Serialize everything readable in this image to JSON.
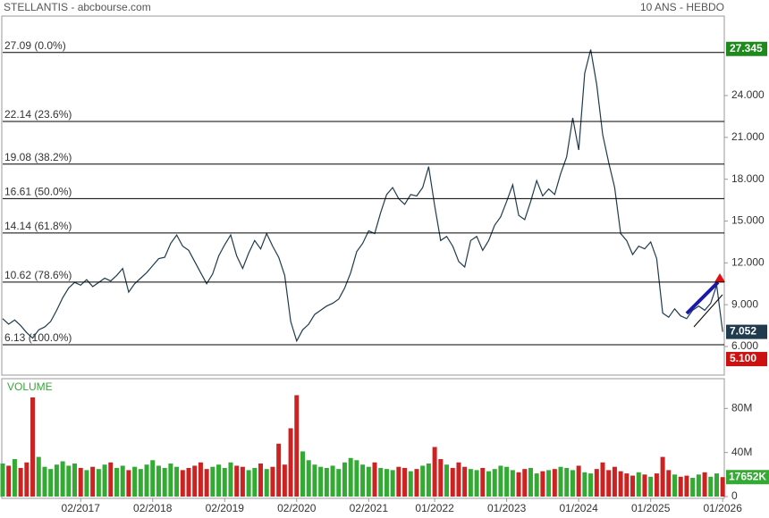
{
  "chart_data": {
    "type": "line",
    "title": "STELLANTIS - abcbourse.com",
    "subtitle": "10 ANS - HEBDO",
    "color": "#1f3b4d",
    "x": [
      "01/2016",
      "02/2016",
      "03/2016",
      "04/2016",
      "05/2016",
      "06/2016",
      "07/2016",
      "08/2016",
      "09/2016",
      "10/2016",
      "11/2016",
      "12/2016",
      "01/2017",
      "02/2017",
      "03/2017",
      "04/2017",
      "05/2017",
      "06/2017",
      "07/2017",
      "08/2017",
      "09/2017",
      "10/2017",
      "11/2017",
      "12/2017",
      "01/2018",
      "02/2018",
      "03/2018",
      "04/2018",
      "05/2018",
      "06/2018",
      "07/2018",
      "08/2018",
      "09/2018",
      "10/2018",
      "11/2018",
      "12/2018",
      "01/2019",
      "02/2019",
      "03/2019",
      "04/2019",
      "05/2019",
      "06/2019",
      "07/2019",
      "08/2019",
      "09/2019",
      "10/2019",
      "11/2019",
      "12/2019",
      "01/2020",
      "02/2020",
      "03/2020",
      "04/2020",
      "05/2020",
      "06/2020",
      "07/2020",
      "08/2020",
      "09/2020",
      "10/2020",
      "11/2020",
      "12/2020",
      "01/2021",
      "02/2021",
      "03/2021",
      "04/2021",
      "05/2021",
      "06/2021",
      "07/2021",
      "08/2021",
      "09/2021",
      "10/2021",
      "11/2021",
      "12/2021",
      "01/2022",
      "02/2022",
      "03/2022",
      "04/2022",
      "05/2022",
      "06/2022",
      "07/2022",
      "08/2022",
      "09/2022",
      "10/2022",
      "11/2022",
      "12/2022",
      "01/2023",
      "02/2023",
      "03/2023",
      "04/2023",
      "05/2023",
      "06/2023",
      "07/2023",
      "08/2023",
      "09/2023",
      "10/2023",
      "11/2023",
      "12/2023",
      "01/2024",
      "02/2024",
      "03/2024",
      "04/2024",
      "05/2024",
      "06/2024",
      "07/2024",
      "08/2024",
      "09/2024",
      "10/2024",
      "11/2024",
      "12/2024",
      "01/2025",
      "02/2025",
      "03/2025",
      "04/2025",
      "05/2025",
      "06/2025",
      "07/2025",
      "08/2025",
      "09/2025",
      "10/2025",
      "11/2025",
      "12/2025",
      "01/2026"
    ],
    "values": [
      8.0,
      7.6,
      7.9,
      7.5,
      7.0,
      6.6,
      7.2,
      7.4,
      7.8,
      8.6,
      9.5,
      10.2,
      10.6,
      10.4,
      10.8,
      10.3,
      10.6,
      10.9,
      10.7,
      11.1,
      11.6,
      9.9,
      10.5,
      10.9,
      11.3,
      11.8,
      12.3,
      12.4,
      13.4,
      14.0,
      13.2,
      12.9,
      12.1,
      11.3,
      10.5,
      11.2,
      12.5,
      13.3,
      14.0,
      12.5,
      11.6,
      12.7,
      13.6,
      13.0,
      14.1,
      13.2,
      12.4,
      11.1,
      7.8,
      6.4,
      7.2,
      7.6,
      8.3,
      8.6,
      8.9,
      9.1,
      9.4,
      10.2,
      11.3,
      12.8,
      13.4,
      14.3,
      14.1,
      15.6,
      16.9,
      17.4,
      16.6,
      16.2,
      16.9,
      16.8,
      17.4,
      18.9,
      16.1,
      13.6,
      13.9,
      13.2,
      12.1,
      11.7,
      13.6,
      13.9,
      12.9,
      13.6,
      14.7,
      15.3,
      16.4,
      17.6,
      15.4,
      15.1,
      16.4,
      17.9,
      16.8,
      17.3,
      16.9,
      18.4,
      19.6,
      22.4,
      20.1,
      25.6,
      27.3,
      24.8,
      21.2,
      19.2,
      17.4,
      14.1,
      13.6,
      12.6,
      13.2,
      13.0,
      13.5,
      12.3,
      8.4,
      8.1,
      8.7,
      8.2,
      8.0,
      8.6,
      8.9,
      8.6,
      9.1,
      10.4,
      7.05
    ],
    "ylim": [
      3.95,
      29.7
    ],
    "yticks": [
      {
        "value": 24,
        "label": "24.000"
      },
      {
        "value": 21,
        "label": "21.000"
      },
      {
        "value": 18,
        "label": "18.000"
      },
      {
        "value": 15,
        "label": "15.000"
      },
      {
        "value": 12,
        "label": "12.000"
      },
      {
        "value": 9,
        "label": "9.000"
      },
      {
        "value": 6,
        "label": "6.000"
      }
    ],
    "fib_levels": [
      {
        "value": 27.09,
        "label": "27.09  (0.0%)"
      },
      {
        "value": 22.14,
        "label": "22.14  (23.6%)"
      },
      {
        "value": 19.08,
        "label": "19.08  (38.2%)"
      },
      {
        "value": 16.61,
        "label": "16.61  (50.0%)"
      },
      {
        "value": 14.14,
        "label": "14.14  (61.8%)"
      },
      {
        "value": 10.62,
        "label": "10.62  (78.6%)"
      },
      {
        "value": 6.13,
        "label": "6.13  (100.0%)"
      }
    ],
    "price_markers": [
      {
        "value": 27.345,
        "color": "#1e8a1e"
      },
      {
        "value": 7.052,
        "color": "#1f3b4d"
      },
      {
        "value": 5.1,
        "label": "5.100",
        "color": "#cc1111"
      }
    ],
    "xticks": [
      "02/2017",
      "02/2018",
      "02/2019",
      "02/2020",
      "02/2021",
      "01/2022",
      "01/2023",
      "01/2024",
      "01/2025",
      "01/2026"
    ],
    "volume": {
      "title": "VOLUME",
      "up_color": "#33aa33",
      "down_color": "#cc2222",
      "values": [
        30,
        28,
        34,
        26,
        31,
        90,
        36,
        27,
        25,
        29,
        32,
        28,
        30,
        26,
        24,
        27,
        25,
        29,
        31,
        26,
        28,
        24,
        27,
        25,
        29,
        33,
        28,
        26,
        30,
        27,
        24,
        26,
        28,
        31,
        25,
        27,
        29,
        26,
        31,
        28,
        27,
        24,
        26,
        30,
        25,
        27,
        48,
        29,
        62,
        92,
        41,
        33,
        29,
        27,
        26,
        28,
        25,
        31,
        35,
        33,
        29,
        27,
        31,
        26,
        25,
        24,
        27,
        26,
        23,
        25,
        28,
        30,
        45,
        34,
        29,
        26,
        31,
        27,
        25,
        24,
        26,
        23,
        25,
        28,
        27,
        24,
        22,
        25,
        26,
        21,
        23,
        24,
        25,
        27,
        26,
        24,
        28,
        22,
        21,
        25,
        31,
        24,
        27,
        23,
        21,
        19,
        22,
        20,
        18,
        21,
        36,
        24,
        20,
        18,
        19,
        17,
        20,
        22,
        18,
        21,
        17.652
      ],
      "ylim": [
        0,
        107
      ],
      "yticks": [
        {
          "value": 80,
          "label": "80M"
        },
        {
          "value": 40,
          "label": "40M"
        },
        0
      ],
      "marker": {
        "value": 17.652,
        "label": "17652K",
        "color": "#33aa33"
      }
    }
  }
}
